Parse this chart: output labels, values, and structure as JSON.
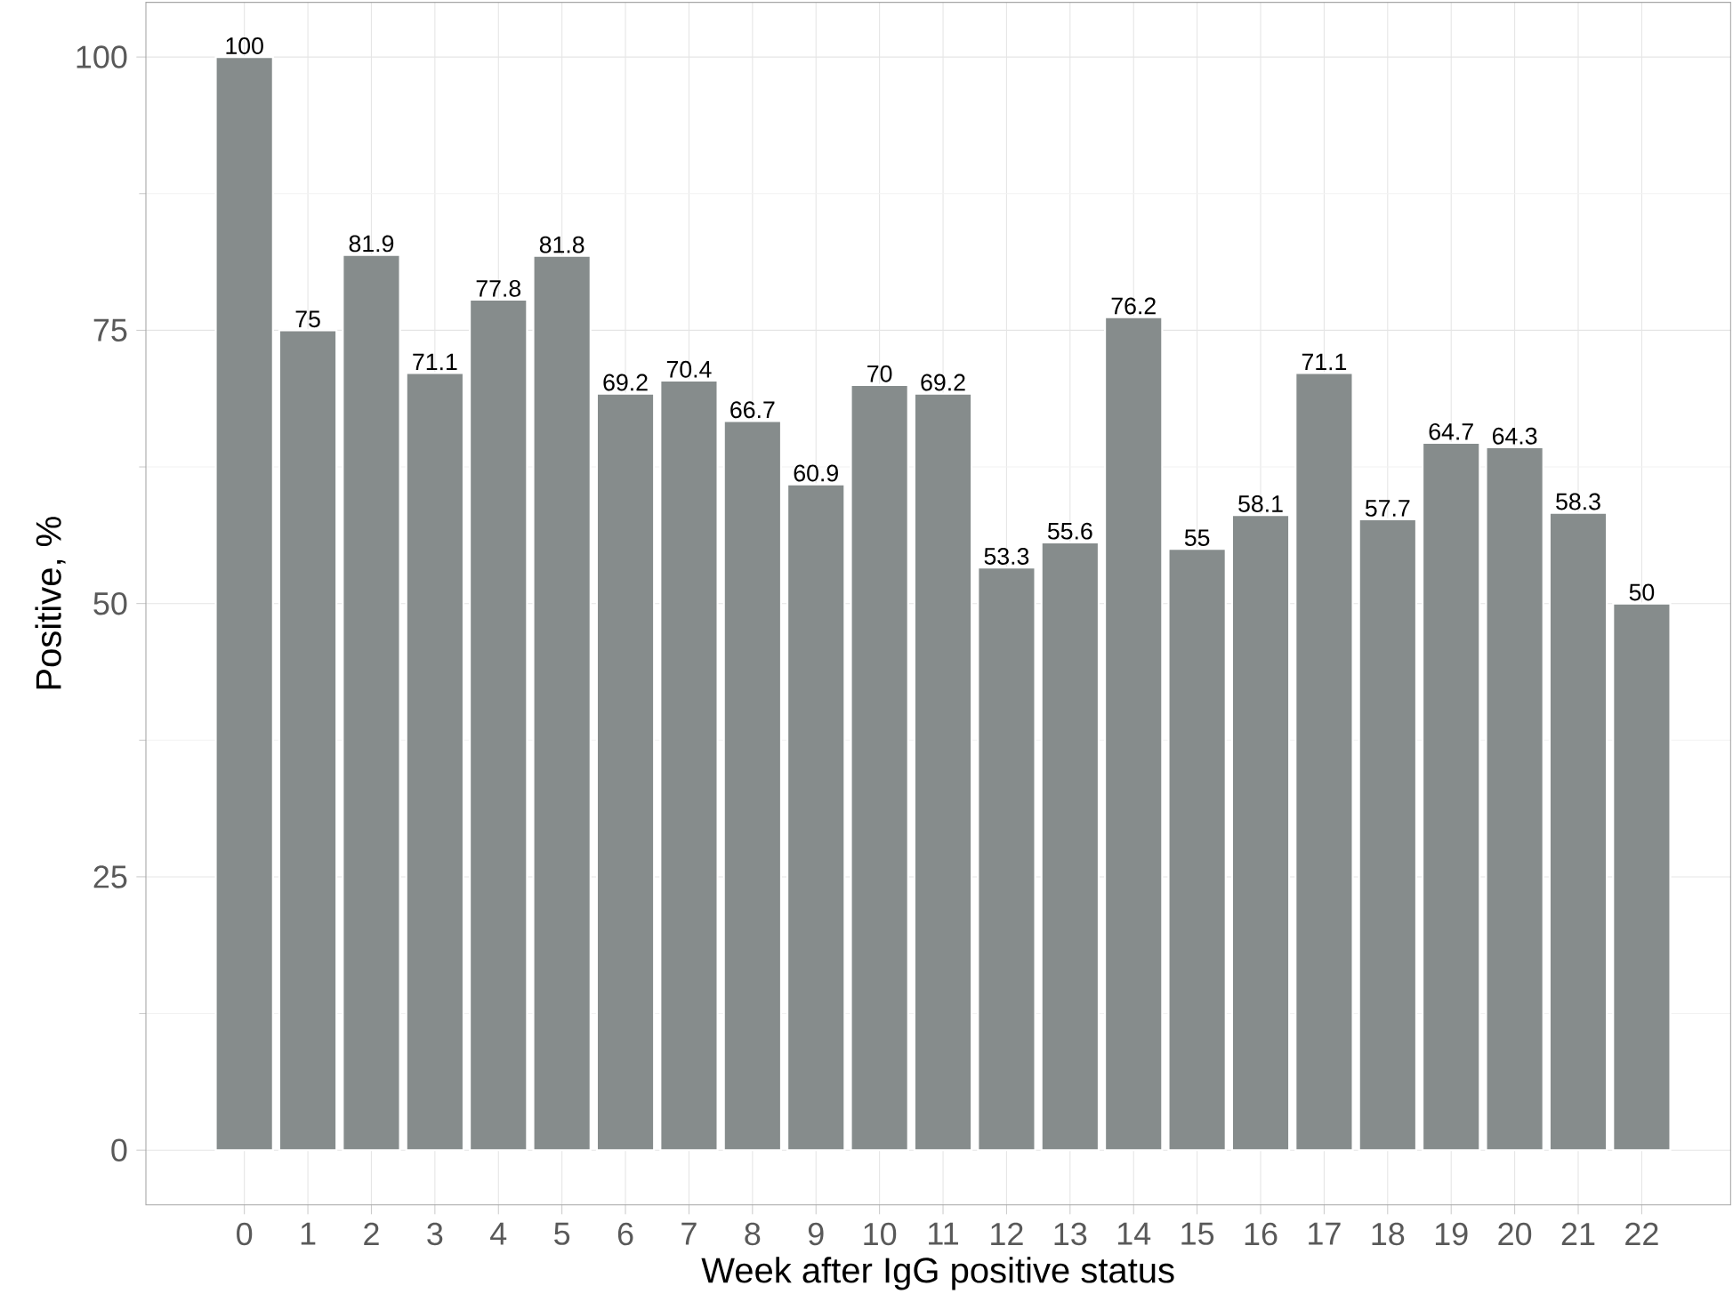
{
  "chart_data": {
    "type": "bar",
    "xlabel": "Week after IgG positive status",
    "ylabel": "Positive, %",
    "categories": [
      "0",
      "1",
      "2",
      "3",
      "4",
      "5",
      "6",
      "7",
      "8",
      "9",
      "10",
      "11",
      "12",
      "13",
      "14",
      "15",
      "16",
      "17",
      "18",
      "19",
      "20",
      "21",
      "22"
    ],
    "values": [
      100,
      75,
      81.9,
      71.1,
      77.8,
      81.8,
      69.2,
      70.4,
      66.7,
      60.9,
      70,
      69.2,
      53.3,
      55.6,
      76.2,
      55,
      58.1,
      71.1,
      57.7,
      64.7,
      64.3,
      58.3,
      50
    ],
    "color": "#868c8c",
    "value_labels": [
      "100",
      "75",
      "81.9",
      "71.1",
      "77.8",
      "81.8",
      "69.2",
      "70.4",
      "66.7",
      "60.9",
      "70",
      "69.2",
      "53.3",
      "55.6",
      "76.2",
      "55",
      "58.1",
      "71.1",
      "57.7",
      "64.7",
      "64.3",
      "58.3",
      "50"
    ],
    "ylim": [
      -5,
      105
    ],
    "yticks": [
      0,
      25,
      50,
      75,
      100
    ],
    "grid": true
  }
}
